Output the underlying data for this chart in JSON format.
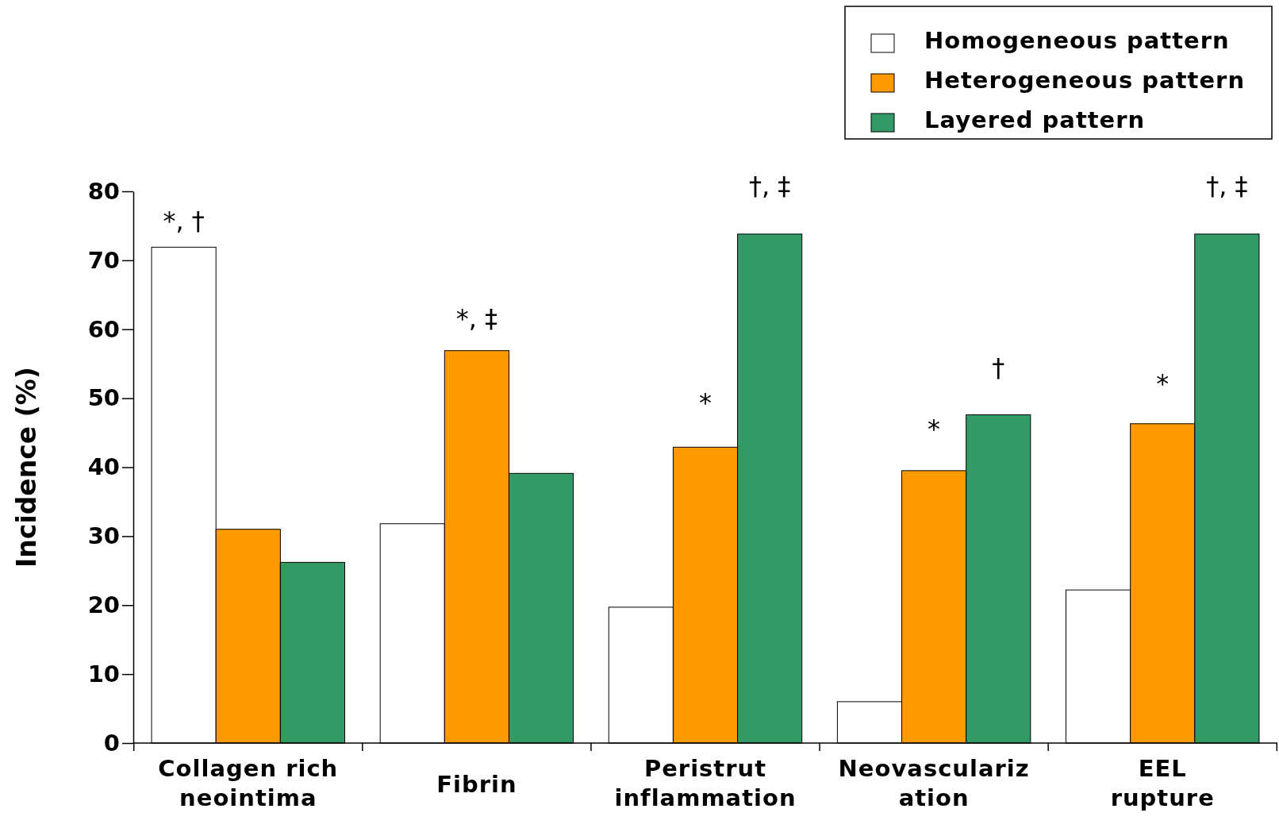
{
  "chart_data": {
    "type": "bar",
    "ylabel": "Incidence (%)",
    "categories": [
      "Collagen rich neointima",
      "Fibrin",
      "Peristrut inflammation",
      "Neovasculariz ation",
      "EEL rupture"
    ],
    "series": [
      {
        "name": "Homogeneous pattern",
        "color": "#ffffff",
        "values": [
          71.9,
          31.8,
          19.7,
          6.0,
          22.2
        ]
      },
      {
        "name": "Heterogeneous pattern",
        "color": "#ff9900",
        "values": [
          31.0,
          56.9,
          42.9,
          39.5,
          46.3
        ]
      },
      {
        "name": "Layered pattern",
        "color": "#339966",
        "values": [
          26.2,
          39.1,
          73.8,
          47.6,
          73.8
        ]
      }
    ],
    "ylim": [
      0,
      80
    ],
    "yticks": [
      0,
      10,
      20,
      30,
      40,
      50,
      60,
      70,
      80
    ],
    "grid": false,
    "legend": "top right",
    "annotations": [
      "*, †",
      "*, ‡",
      "*",
      "†, ‡",
      "*",
      "†",
      "*",
      "†, ‡"
    ]
  }
}
